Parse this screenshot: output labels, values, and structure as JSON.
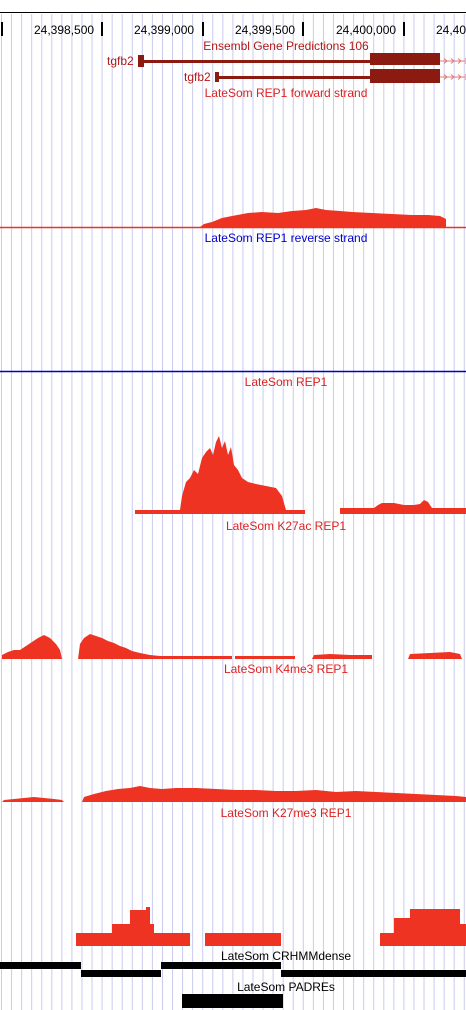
{
  "ruler": {
    "ticks": [
      "24,398,500",
      "24,399,000",
      "24,399,500",
      "24,400,000",
      "24,40"
    ]
  },
  "colors": {
    "signal_red": "#ee3322",
    "gene_dark_red": "#8b1a10",
    "gene_label_red": "#b01818",
    "title_red": "#dd2222",
    "reverse_blue": "#0000cc",
    "grid_lavender": "#c9cbf0",
    "element_black": "#000000"
  },
  "gene_track": {
    "title": "Ensembl Gene Predictions 106",
    "genes": [
      {
        "name": "tgfb2",
        "strand": "+"
      },
      {
        "name": "tgfb2",
        "strand": "+"
      }
    ]
  },
  "tracks": {
    "forward": {
      "title": "LateSom REP1 forward strand"
    },
    "reverse": {
      "title": "LateSom REP1 reverse strand"
    },
    "rep1": {
      "title": "LateSom REP1"
    },
    "k27ac": {
      "title": "LateSom K27ac REP1"
    },
    "k4me3": {
      "title": "LateSom K4me3 REP1"
    },
    "k27me3": {
      "title": "LateSom K27me3 REP1"
    },
    "crhmm": {
      "title": "LateSom CRHMMdense"
    },
    "padres": {
      "title": "LateSom PADREs"
    }
  }
}
